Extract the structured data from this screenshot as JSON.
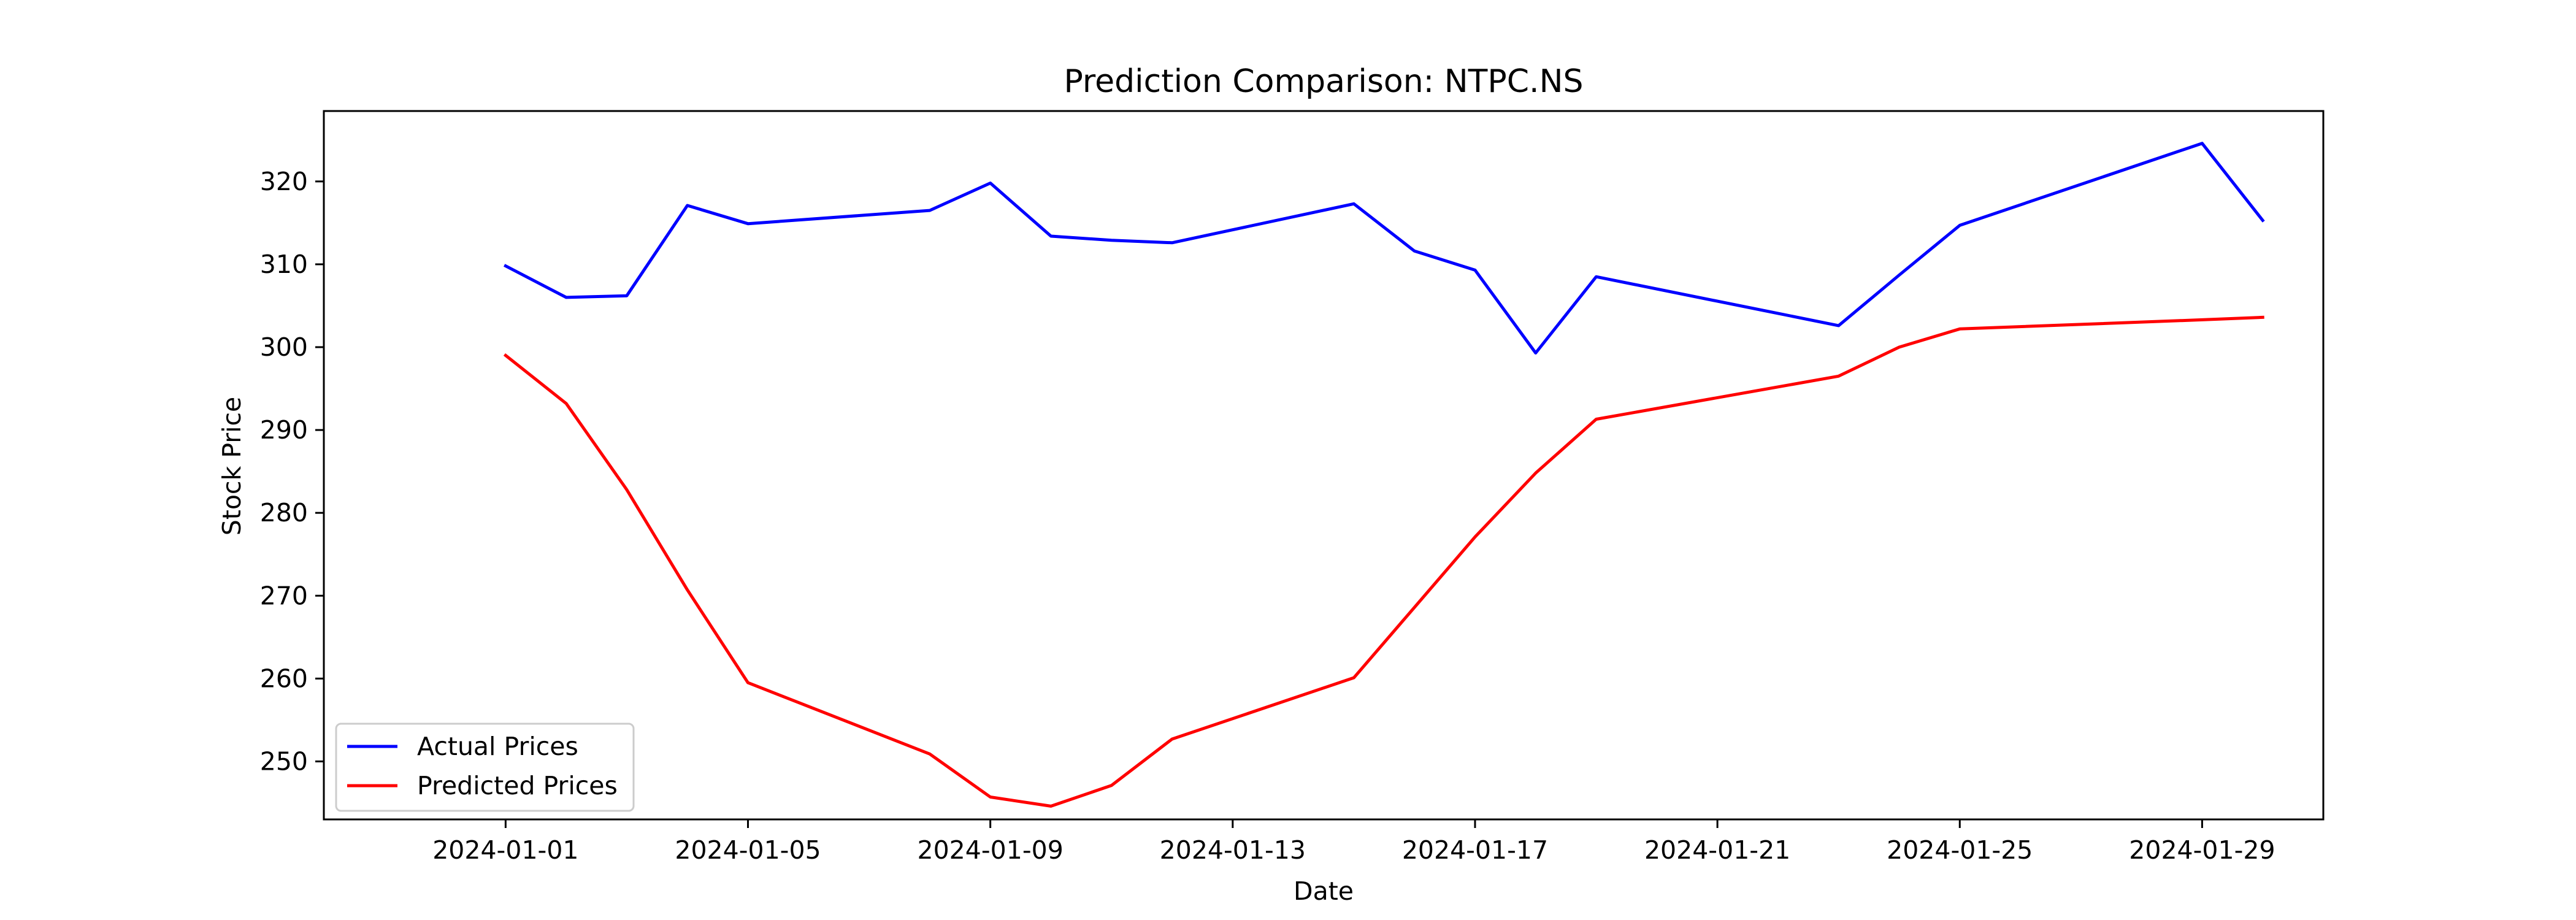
{
  "chart_data": {
    "type": "line",
    "title": "Prediction Comparison: NTPC.NS",
    "xlabel": "Date",
    "ylabel": "Stock Price",
    "grid": false,
    "legend_position": "lower-left",
    "xlim": [
      "2023-12-29",
      "2024-01-31"
    ],
    "ylim": [
      243,
      328.5
    ],
    "x_ticks": [
      "2024-01-01",
      "2024-01-05",
      "2024-01-09",
      "2024-01-13",
      "2024-01-17",
      "2024-01-21",
      "2024-01-25",
      "2024-01-29"
    ],
    "y_ticks": [
      250,
      260,
      270,
      280,
      290,
      300,
      310,
      320
    ],
    "series": [
      {
        "name": "Actual Prices",
        "color": "#0000ff",
        "points": [
          {
            "x": "2024-01-01",
            "y": 309.8
          },
          {
            "x": "2024-01-02",
            "y": 306.0
          },
          {
            "x": "2024-01-03",
            "y": 306.2
          },
          {
            "x": "2024-01-04",
            "y": 317.1
          },
          {
            "x": "2024-01-05",
            "y": 314.9
          },
          {
            "x": "2024-01-08",
            "y": 316.5
          },
          {
            "x": "2024-01-09",
            "y": 319.8
          },
          {
            "x": "2024-01-10",
            "y": 313.4
          },
          {
            "x": "2024-01-11",
            "y": 312.9
          },
          {
            "x": "2024-01-12",
            "y": 312.6
          },
          {
            "x": "2024-01-15",
            "y": 317.3
          },
          {
            "x": "2024-01-16",
            "y": 311.6
          },
          {
            "x": "2024-01-17",
            "y": 309.3
          },
          {
            "x": "2024-01-18",
            "y": 299.3
          },
          {
            "x": "2024-01-19",
            "y": 308.5
          },
          {
            "x": "2024-01-23",
            "y": 302.6
          },
          {
            "x": "2024-01-24",
            "y": 308.7
          },
          {
            "x": "2024-01-25",
            "y": 314.7
          },
          {
            "x": "2024-01-29",
            "y": 324.6
          },
          {
            "x": "2024-01-30",
            "y": 315.3
          }
        ]
      },
      {
        "name": "Predicted Prices",
        "color": "#ff0000",
        "points": [
          {
            "x": "2024-01-01",
            "y": 299.0
          },
          {
            "x": "2024-01-02",
            "y": 293.2
          },
          {
            "x": "2024-01-03",
            "y": 282.8
          },
          {
            "x": "2024-01-04",
            "y": 270.7
          },
          {
            "x": "2024-01-05",
            "y": 259.5
          },
          {
            "x": "2024-01-08",
            "y": 250.9
          },
          {
            "x": "2024-01-09",
            "y": 245.7
          },
          {
            "x": "2024-01-10",
            "y": 244.6
          },
          {
            "x": "2024-01-11",
            "y": 247.1
          },
          {
            "x": "2024-01-12",
            "y": 252.7
          },
          {
            "x": "2024-01-15",
            "y": 260.1
          },
          {
            "x": "2024-01-16",
            "y": 268.6
          },
          {
            "x": "2024-01-17",
            "y": 277.1
          },
          {
            "x": "2024-01-18",
            "y": 284.8
          },
          {
            "x": "2024-01-19",
            "y": 291.3
          },
          {
            "x": "2024-01-23",
            "y": 296.5
          },
          {
            "x": "2024-01-24",
            "y": 300.0
          },
          {
            "x": "2024-01-25",
            "y": 302.2
          },
          {
            "x": "2024-01-29",
            "y": 303.3
          },
          {
            "x": "2024-01-30",
            "y": 303.6
          }
        ]
      }
    ]
  }
}
